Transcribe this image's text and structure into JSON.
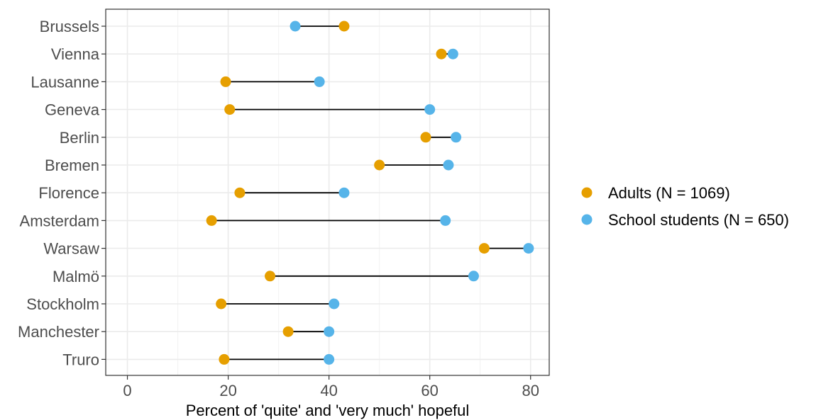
{
  "chart_data": {
    "type": "scatter",
    "subtype": "dumbbell",
    "xlabel": "Percent of 'quite' and 'very much' hopeful",
    "ylabel": "",
    "xlim": [
      -4.3,
      83.7
    ],
    "xticks": [
      0,
      20,
      40,
      60,
      80
    ],
    "grid": true,
    "legend_position": "right",
    "categories": [
      "Brussels",
      "Vienna",
      "Lausanne",
      "Geneva",
      "Berlin",
      "Bremen",
      "Florence",
      "Amsterdam",
      "Warsaw",
      "Malmö",
      "Stockholm",
      "Manchester",
      "Truro"
    ],
    "series": [
      {
        "name": "Adults (N = 1069)",
        "color": "#E69F00",
        "values": [
          43.0,
          62.3,
          19.5,
          20.3,
          59.2,
          50.0,
          22.3,
          16.7,
          70.8,
          28.3,
          18.6,
          31.9,
          19.2
        ]
      },
      {
        "name": "School students (N = 650)",
        "color": "#56B4E9",
        "values": [
          33.3,
          64.6,
          38.1,
          60.0,
          65.2,
          63.7,
          43.0,
          63.1,
          79.6,
          68.7,
          41.0,
          40.0,
          40.0
        ]
      }
    ]
  }
}
